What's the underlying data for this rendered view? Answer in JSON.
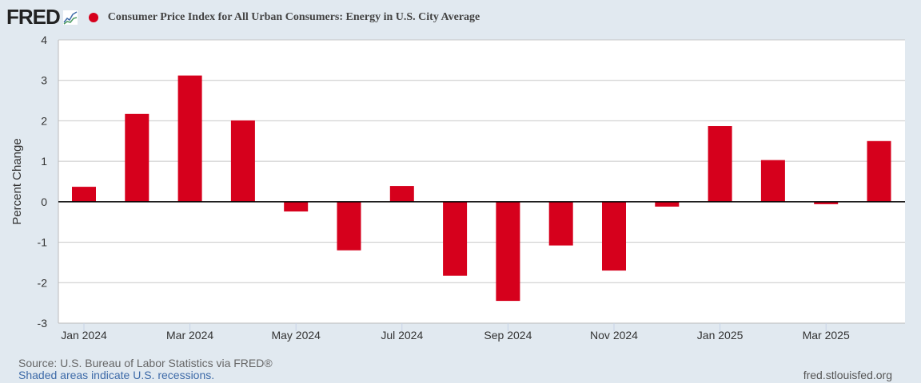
{
  "header": {
    "logo": "FRED",
    "title": "Consumer Price Index for All Urban Consumers: Energy in U.S. City Average"
  },
  "footer": {
    "source": "Source: U.S. Bureau of Labor Statistics via FRED®",
    "recessions": "Shaded areas indicate U.S. recessions.",
    "url": "fred.stlouisfed.org"
  },
  "colors": {
    "bar": "#d6001c",
    "grid": "#c8c8c8",
    "background": "#e1e9f0"
  },
  "chart_data": {
    "type": "bar",
    "title": "Consumer Price Index for All Urban Consumers: Energy in U.S. City Average",
    "xlabel": "",
    "ylabel": "Percent Change",
    "ylim": [
      -3,
      4
    ],
    "yticks": [
      4,
      3,
      2,
      1,
      0,
      -1,
      -2,
      -3
    ],
    "categories": [
      "Jan 2024",
      "Feb 2024",
      "Mar 2024",
      "Apr 2024",
      "May 2024",
      "Jun 2024",
      "Jul 2024",
      "Aug 2024",
      "Sep 2024",
      "Oct 2024",
      "Nov 2024",
      "Dec 2024",
      "Jan 2025",
      "Feb 2025",
      "Mar 2025",
      "Apr 2025"
    ],
    "xtick_labels": [
      "Jan 2024",
      "Mar 2024",
      "May 2024",
      "Jul 2024",
      "Sep 2024",
      "Nov 2024",
      "Jan 2025",
      "Mar 2025"
    ],
    "values": [
      0.37,
      2.17,
      3.12,
      2.01,
      -0.24,
      -1.2,
      0.39,
      -1.83,
      -2.45,
      -1.08,
      -1.7,
      -0.12,
      1.87,
      1.03,
      -0.06,
      1.5
    ],
    "grid": true
  }
}
